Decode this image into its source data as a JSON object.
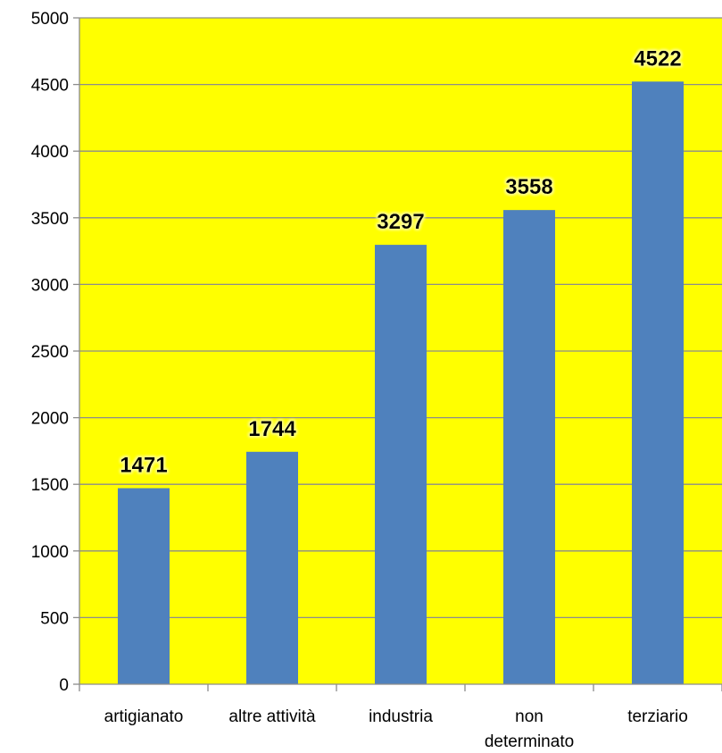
{
  "chart_data": {
    "type": "bar",
    "title": "",
    "xlabel": "",
    "ylabel": "",
    "categories": [
      [
        "artigianato"
      ],
      [
        "altre attività"
      ],
      [
        "industria"
      ],
      [
        "non",
        "determinato"
      ],
      [
        "terziario"
      ]
    ],
    "values": [
      1471,
      1744,
      3297,
      3558,
      4522
    ],
    "ylim": [
      0,
      5000
    ],
    "ytick_step": 500,
    "yticks": [
      "0",
      "500",
      "1000",
      "1500",
      "2000",
      "2500",
      "3000",
      "3500",
      "4000",
      "4500",
      "5000"
    ],
    "data_labels": [
      "1471",
      "1744",
      "3297",
      "3558",
      "4522"
    ],
    "grid": true,
    "legend": "none",
    "colors": {
      "plot_background": "#FFFF00",
      "bar": "#4F81BD",
      "gridline": "#8C8C8C",
      "axis": "#8C8C8C",
      "data_label_glow": "#FFFFFF"
    }
  }
}
